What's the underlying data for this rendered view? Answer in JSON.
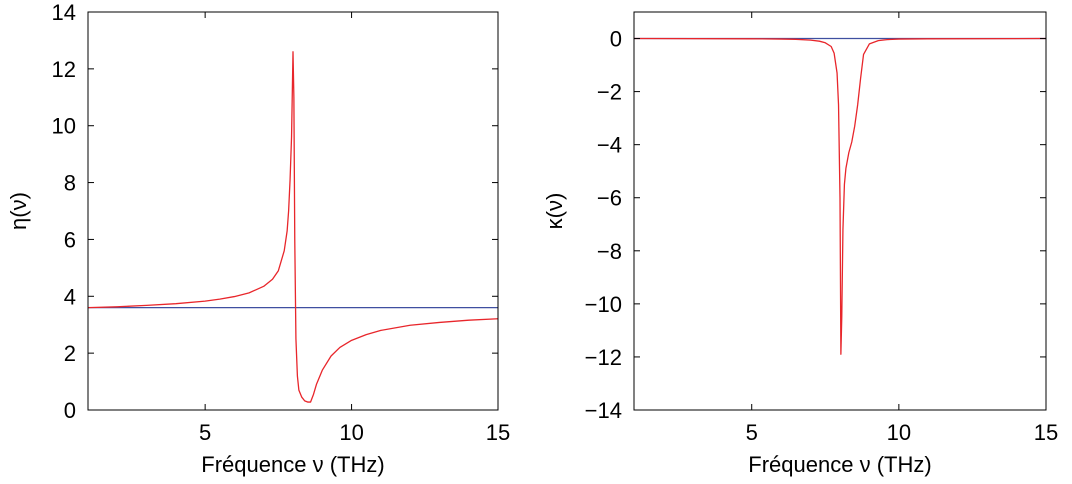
{
  "chart_data": [
    {
      "type": "line",
      "xlabel": "Fréquence ν (THz)",
      "ylabel": "η(ν)",
      "xlim": [
        1,
        15
      ],
      "ylim": [
        0,
        14
      ],
      "xticks": [
        5,
        10,
        15
      ],
      "xtick_labels": [
        "5",
        "10",
        "15"
      ],
      "yticks": [
        0,
        2,
        4,
        6,
        8,
        10,
        12,
        14
      ],
      "ytick_labels": [
        "0",
        "2",
        "4",
        "6",
        "8",
        "10",
        "12",
        "14"
      ],
      "grid": false,
      "series": [
        {
          "color": "#3f4fa0",
          "x": [
            1,
            15
          ],
          "y": [
            3.6,
            3.6
          ]
        },
        {
          "color": "#e8262b",
          "x": [
            1,
            2,
            3,
            4,
            5,
            5.5,
            6,
            6.5,
            7,
            7.3,
            7.5,
            7.7,
            7.8,
            7.85,
            7.9,
            7.95,
            8.0,
            8.03,
            8.06,
            8.1,
            8.15,
            8.2,
            8.3,
            8.4,
            8.5,
            8.6,
            8.7,
            8.8,
            9.0,
            9.3,
            9.6,
            10,
            10.5,
            11,
            12,
            13,
            14,
            15
          ],
          "y": [
            3.6,
            3.63,
            3.68,
            3.74,
            3.83,
            3.9,
            3.99,
            4.12,
            4.35,
            4.6,
            4.9,
            5.6,
            6.3,
            7.0,
            8.1,
            9.6,
            12.6,
            11.0,
            6.0,
            2.5,
            1.2,
            0.7,
            0.45,
            0.32,
            0.28,
            0.28,
            0.55,
            0.9,
            1.4,
            1.9,
            2.2,
            2.45,
            2.65,
            2.8,
            2.98,
            3.08,
            3.16,
            3.21
          ]
        }
      ]
    },
    {
      "type": "line",
      "xlabel": "Fréquence ν (THz)",
      "ylabel": "κ(ν)",
      "xlim": [
        1,
        15
      ],
      "ylim": [
        -14,
        1
      ],
      "xticks": [
        5,
        10,
        15
      ],
      "xtick_labels": [
        "5",
        "10",
        "15"
      ],
      "yticks": [
        -14,
        -12,
        -10,
        -8,
        -6,
        -4,
        -2,
        0
      ],
      "ytick_labels": [
        "−14",
        "−12",
        "−10",
        "−8",
        "−6",
        "−4",
        "−2",
        "0"
      ],
      "grid": false,
      "series": [
        {
          "color": "#3f4fa0",
          "x": [
            1,
            15
          ],
          "y": [
            0,
            0
          ]
        },
        {
          "color": "#e8262b",
          "x": [
            1,
            5,
            6,
            6.5,
            7,
            7.3,
            7.5,
            7.7,
            7.8,
            7.9,
            7.95,
            8.0,
            8.03,
            8.06,
            8.1,
            8.15,
            8.2,
            8.3,
            8.4,
            8.5,
            8.6,
            8.7,
            8.8,
            9.0,
            9.3,
            9.6,
            10,
            11,
            15
          ],
          "y": [
            0,
            -0.01,
            -0.02,
            -0.03,
            -0.06,
            -0.1,
            -0.16,
            -0.3,
            -0.55,
            -1.3,
            -2.5,
            -6.0,
            -11.9,
            -10.5,
            -7.2,
            -5.5,
            -4.9,
            -4.3,
            -3.9,
            -3.3,
            -2.5,
            -1.5,
            -0.6,
            -0.2,
            -0.08,
            -0.04,
            -0.02,
            -0.01,
            0
          ]
        }
      ]
    }
  ]
}
